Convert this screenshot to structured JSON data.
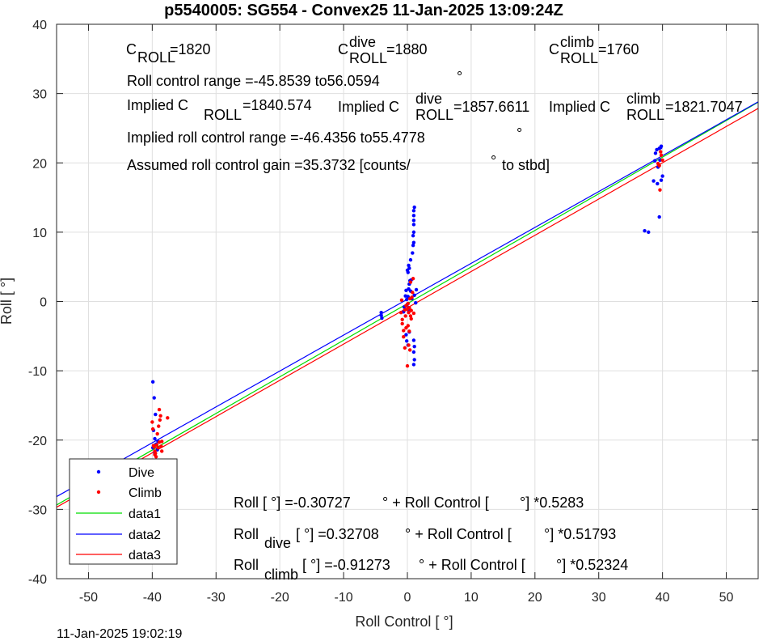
{
  "chart_data": {
    "type": "scatter",
    "title": "p5540005: SG554 - Convex25 11-Jan-2025 13:09:24Z",
    "xlabel": "Roll Control [   °]",
    "ylabel": "Roll [  °]",
    "xlim": [
      -55,
      55
    ],
    "ylim": [
      -40,
      40
    ],
    "xticks": [
      -50,
      -40,
      -30,
      -20,
      -10,
      0,
      10,
      20,
      30,
      40,
      50
    ],
    "yticks": [
      -40,
      -30,
      -20,
      -10,
      0,
      10,
      20,
      30,
      40
    ],
    "grid": true,
    "legend_position": "bottom-left",
    "series": [
      {
        "name": "Dive",
        "kind": "points",
        "color": "#0000ff",
        "points": [
          [
            -39.9,
            -11.6
          ],
          [
            -39.7,
            -13.9
          ],
          [
            -39.5,
            -16.3
          ],
          [
            -39.8,
            -18.6
          ],
          [
            -39.6,
            -19.8
          ],
          [
            -39.4,
            -20.6
          ],
          [
            -39.9,
            -21.1
          ],
          [
            -39.2,
            -21.4
          ],
          [
            -39.6,
            -21.9
          ],
          [
            -39.1,
            -20.2
          ],
          [
            -4.1,
            -1.6
          ],
          [
            -4.1,
            -2.0
          ],
          [
            -4.0,
            -2.4
          ],
          [
            -0.6,
            -1.5
          ],
          [
            -0.5,
            -0.8
          ],
          [
            -0.3,
            0.8
          ],
          [
            -0.2,
            1.6
          ],
          [
            -0.1,
            0.3
          ],
          [
            0.0,
            -0.4
          ],
          [
            0.1,
            0.7
          ],
          [
            0.1,
            -1.2
          ],
          [
            0.2,
            -0.9
          ],
          [
            0.2,
            1.8
          ],
          [
            0.3,
            2.5
          ],
          [
            0.4,
            3.0
          ],
          [
            0.0,
            4.5
          ],
          [
            0.1,
            4.2
          ],
          [
            0.2,
            5.2
          ],
          [
            0.3,
            4.8
          ],
          [
            0.5,
            6.0
          ],
          [
            0.6,
            3.1
          ],
          [
            0.8,
            7.0
          ],
          [
            0.9,
            8.1
          ],
          [
            1.0,
            8.5
          ],
          [
            1.0,
            10.0
          ],
          [
            1.0,
            11.1
          ],
          [
            1.0,
            11.7
          ],
          [
            1.0,
            12.4
          ],
          [
            1.0,
            13.1
          ],
          [
            1.1,
            13.6
          ],
          [
            0.9,
            9.5
          ],
          [
            0.5,
            1.5
          ],
          [
            1.4,
            1.7
          ],
          [
            1.1,
            0.9
          ],
          [
            0.7,
            0.4
          ],
          [
            1.3,
            -0.2
          ],
          [
            -0.2,
            -4.8
          ],
          [
            -0.1,
            -5.7
          ],
          [
            0.1,
            -6.3
          ],
          [
            0.3,
            -4.4
          ],
          [
            1.0,
            -5.6
          ],
          [
            1.1,
            -6.5
          ],
          [
            1.0,
            -7.3
          ],
          [
            1.1,
            -8.4
          ],
          [
            1.0,
            -9.1
          ],
          [
            37.2,
            10.2
          ],
          [
            37.8,
            10.0
          ],
          [
            38.6,
            17.4
          ],
          [
            39.2,
            17.0
          ],
          [
            39.5,
            12.2
          ],
          [
            39.8,
            17.5
          ],
          [
            40.0,
            18.1
          ],
          [
            38.8,
            20.3
          ],
          [
            38.9,
            21.4
          ],
          [
            39.1,
            21.9
          ],
          [
            39.5,
            22.1
          ],
          [
            39.7,
            22.2
          ],
          [
            39.8,
            22.4
          ],
          [
            39.6,
            20.4
          ],
          [
            39.3,
            19.4
          ]
        ]
      },
      {
        "name": "Climb",
        "kind": "points",
        "color": "#ff0000",
        "points": [
          [
            -40.0,
            -17.4
          ],
          [
            -39.9,
            -18.4
          ],
          [
            -39.7,
            -21.0
          ],
          [
            -39.6,
            -22.1
          ],
          [
            -39.4,
            -22.4
          ],
          [
            -39.2,
            -19.1
          ],
          [
            -39.0,
            -18.0
          ],
          [
            -38.9,
            -15.6
          ],
          [
            -38.8,
            -17.1
          ],
          [
            -38.6,
            -20.9
          ],
          [
            -38.5,
            -21.6
          ],
          [
            -38.7,
            -16.5
          ],
          [
            -38.9,
            -20.3
          ],
          [
            -39.1,
            -21.1
          ],
          [
            -39.3,
            -20.7
          ],
          [
            -38.5,
            -20.2
          ],
          [
            -37.6,
            -16.8
          ],
          [
            -39.6,
            -21.6
          ],
          [
            -39.8,
            -20.8
          ],
          [
            -39.5,
            -21.9
          ],
          [
            -1.0,
            -1.6
          ],
          [
            -0.8,
            -2.6
          ],
          [
            -0.8,
            -3.2
          ],
          [
            -0.6,
            -4.2
          ],
          [
            -0.6,
            -5.1
          ],
          [
            -0.4,
            -1.2
          ],
          [
            -0.3,
            -2.1
          ],
          [
            -0.2,
            -0.6
          ],
          [
            0.0,
            -1.1
          ],
          [
            0.1,
            -0.3
          ],
          [
            0.2,
            -1.6
          ],
          [
            0.3,
            -0.9
          ],
          [
            0.4,
            0.4
          ],
          [
            0.5,
            -2.1
          ],
          [
            0.6,
            -1.3
          ],
          [
            0.8,
            1.3
          ],
          [
            0.9,
            3.3
          ],
          [
            0.5,
            2.8
          ],
          [
            0.3,
            -4.3
          ],
          [
            0.2,
            -6.3
          ],
          [
            0.0,
            -9.3
          ],
          [
            0.4,
            -7.0
          ],
          [
            -0.4,
            -6.7
          ],
          [
            -0.2,
            -3.8
          ],
          [
            0.1,
            -3.5
          ],
          [
            0.6,
            -2.5
          ],
          [
            1.0,
            -1.7
          ],
          [
            -0.9,
            0.2
          ],
          [
            0.7,
            0.6
          ],
          [
            39.3,
            19.9
          ],
          [
            39.5,
            19.6
          ],
          [
            39.6,
            16.1
          ],
          [
            39.7,
            21.6
          ],
          [
            39.8,
            21.1
          ],
          [
            40.0,
            20.4
          ]
        ]
      },
      {
        "name": "data1",
        "kind": "line",
        "color": "#00dd00",
        "slope": 0.5283,
        "intercept": -0.30727
      },
      {
        "name": "data2",
        "kind": "line",
        "color": "#0000ff",
        "slope": 0.51793,
        "intercept": 0.32708
      },
      {
        "name": "data3",
        "kind": "line",
        "color": "#ff0000",
        "slope": 0.52324,
        "intercept": -0.91273
      }
    ],
    "annotations": {
      "c_roll_main": "C",
      "c_roll_sub": "ROLL",
      "c_roll_val": "=1820",
      "c_dive_main": "C",
      "c_dive_sup": "dive",
      "c_dive_sub": "ROLL",
      "c_dive_val": "=1880",
      "c_climb_main": "C",
      "c_climb_sup": "climb",
      "c_climb_sub": "ROLL",
      "c_climb_val": "=1760",
      "range_text": "Roll control range =-45.8539 to56.0594",
      "range_deg": "°",
      "implied_main": "Implied C",
      "implied_sub": "ROLL",
      "implied_val": "=1840.574",
      "implied_dive_main": "Implied C",
      "implied_dive_sup": "dive",
      "implied_dive_sub": "ROLL",
      "implied_dive_val": "=1857.6611",
      "implied_climb_main": "Implied C",
      "implied_climb_sup": "climb",
      "implied_climb_sub": "ROLL",
      "implied_climb_val": "=1821.7047",
      "implied_range_text": "Implied roll control range =-46.4356 to55.4778",
      "implied_range_deg": "°",
      "gain_text": "Assumed roll control gain =35.3732 [counts/",
      "gain_deg": "°",
      "gain_tail": "to stbd]",
      "fit1_a": "Roll [  °] =-0.30727",
      "fit1_b": "° + Roll Control [",
      "fit1_c": "°] *0.5283",
      "fit2_main": "Roll",
      "fit2_sub": "dive",
      "fit2_a": "[  °] =0.32708",
      "fit2_b": "° + Roll Control [",
      "fit2_c": "°] *0.51793",
      "fit3_main": "Roll",
      "fit3_sub": "climb",
      "fit3_a": "[  °] =-0.91273",
      "fit3_b": "° + Roll Control [",
      "fit3_c": "°] *0.52324"
    }
  },
  "timestamp": "11-Jan-2025 19:02:19"
}
